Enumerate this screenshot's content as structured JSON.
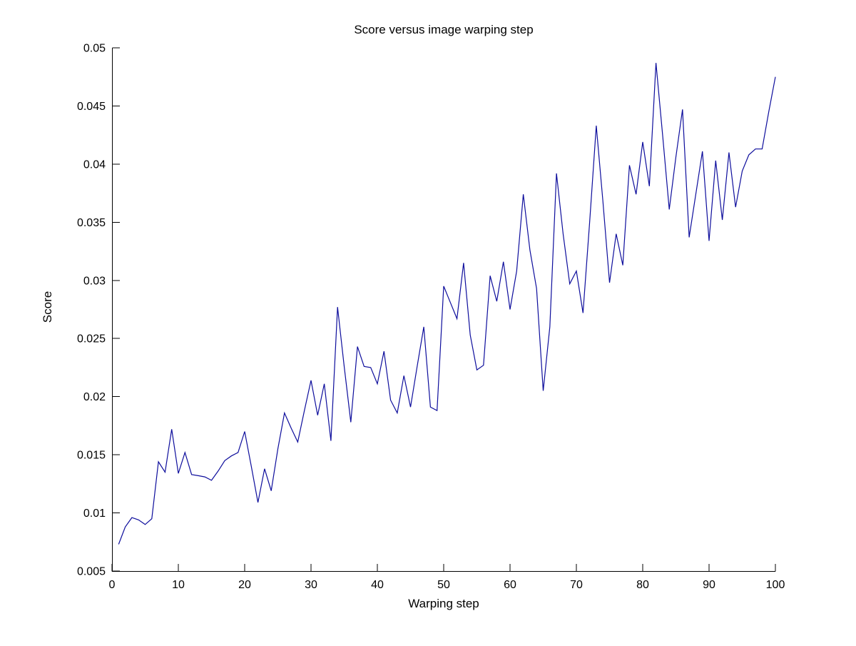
{
  "figure": {
    "background_color": "#ffffff",
    "axis_color": "#000000"
  },
  "chart_data": {
    "type": "line",
    "title": "Score versus image warping step",
    "xlabel": "Warping step",
    "ylabel": "Score",
    "xlim": [
      0,
      100
    ],
    "ylim": [
      0.005,
      0.05
    ],
    "grid": false,
    "legend": "none",
    "x_tick_labels": [
      "0",
      "10",
      "20",
      "30",
      "40",
      "50",
      "60",
      "70",
      "80",
      "90",
      "100"
    ],
    "y_tick_labels": [
      "0.005",
      "0.01",
      "0.015",
      "0.02",
      "0.025",
      "0.03",
      "0.035",
      "0.04",
      "0.045",
      "0.05"
    ],
    "line_color": "#0d0d9c",
    "series": [
      {
        "name": "score",
        "x": [
          1,
          2,
          3,
          4,
          5,
          6,
          7,
          8,
          9,
          10,
          11,
          12,
          13,
          14,
          15,
          16,
          17,
          18,
          19,
          20,
          21,
          22,
          23,
          24,
          25,
          26,
          27,
          28,
          29,
          30,
          31,
          32,
          33,
          34,
          35,
          36,
          37,
          38,
          39,
          40,
          41,
          42,
          43,
          44,
          45,
          46,
          47,
          48,
          49,
          50,
          51,
          52,
          53,
          54,
          55,
          56,
          57,
          58,
          59,
          60,
          61,
          62,
          63,
          64,
          65,
          66,
          67,
          68,
          69,
          70,
          71,
          72,
          73,
          74,
          75,
          76,
          77,
          78,
          79,
          80,
          81,
          82,
          83,
          84,
          85,
          86,
          87,
          88,
          89,
          90,
          91,
          92,
          93,
          94,
          95,
          96,
          97,
          98,
          99,
          100
        ],
        "y": [
          0.0073,
          0.0088,
          0.0096,
          0.0094,
          0.009,
          0.0095,
          0.0144,
          0.0135,
          0.0172,
          0.0134,
          0.0152,
          0.0133,
          0.0132,
          0.0131,
          0.0128,
          0.0136,
          0.0145,
          0.0149,
          0.0152,
          0.017,
          0.014,
          0.0109,
          0.0138,
          0.0119,
          0.0155,
          0.0186,
          0.0173,
          0.0161,
          0.0188,
          0.0214,
          0.0184,
          0.0211,
          0.0162,
          0.0277,
          0.0226,
          0.0178,
          0.0243,
          0.0226,
          0.0225,
          0.0211,
          0.0239,
          0.0197,
          0.0186,
          0.0218,
          0.0191,
          0.0226,
          0.026,
          0.0191,
          0.0188,
          0.0295,
          0.0281,
          0.0267,
          0.0315,
          0.0253,
          0.0223,
          0.0227,
          0.0304,
          0.0282,
          0.0316,
          0.0275,
          0.0308,
          0.0374,
          0.0326,
          0.0293,
          0.0205,
          0.026,
          0.0392,
          0.034,
          0.0297,
          0.0308,
          0.0272,
          0.035,
          0.0433,
          0.0368,
          0.0298,
          0.034,
          0.0313,
          0.0399,
          0.0374,
          0.0419,
          0.0381,
          0.0487,
          0.0425,
          0.0361,
          0.0406,
          0.0447,
          0.0337,
          0.0374,
          0.0411,
          0.0334,
          0.0403,
          0.0352,
          0.041,
          0.0363,
          0.0394,
          0.0408,
          0.0413,
          0.0413,
          0.0445,
          0.0475
        ]
      }
    ]
  }
}
